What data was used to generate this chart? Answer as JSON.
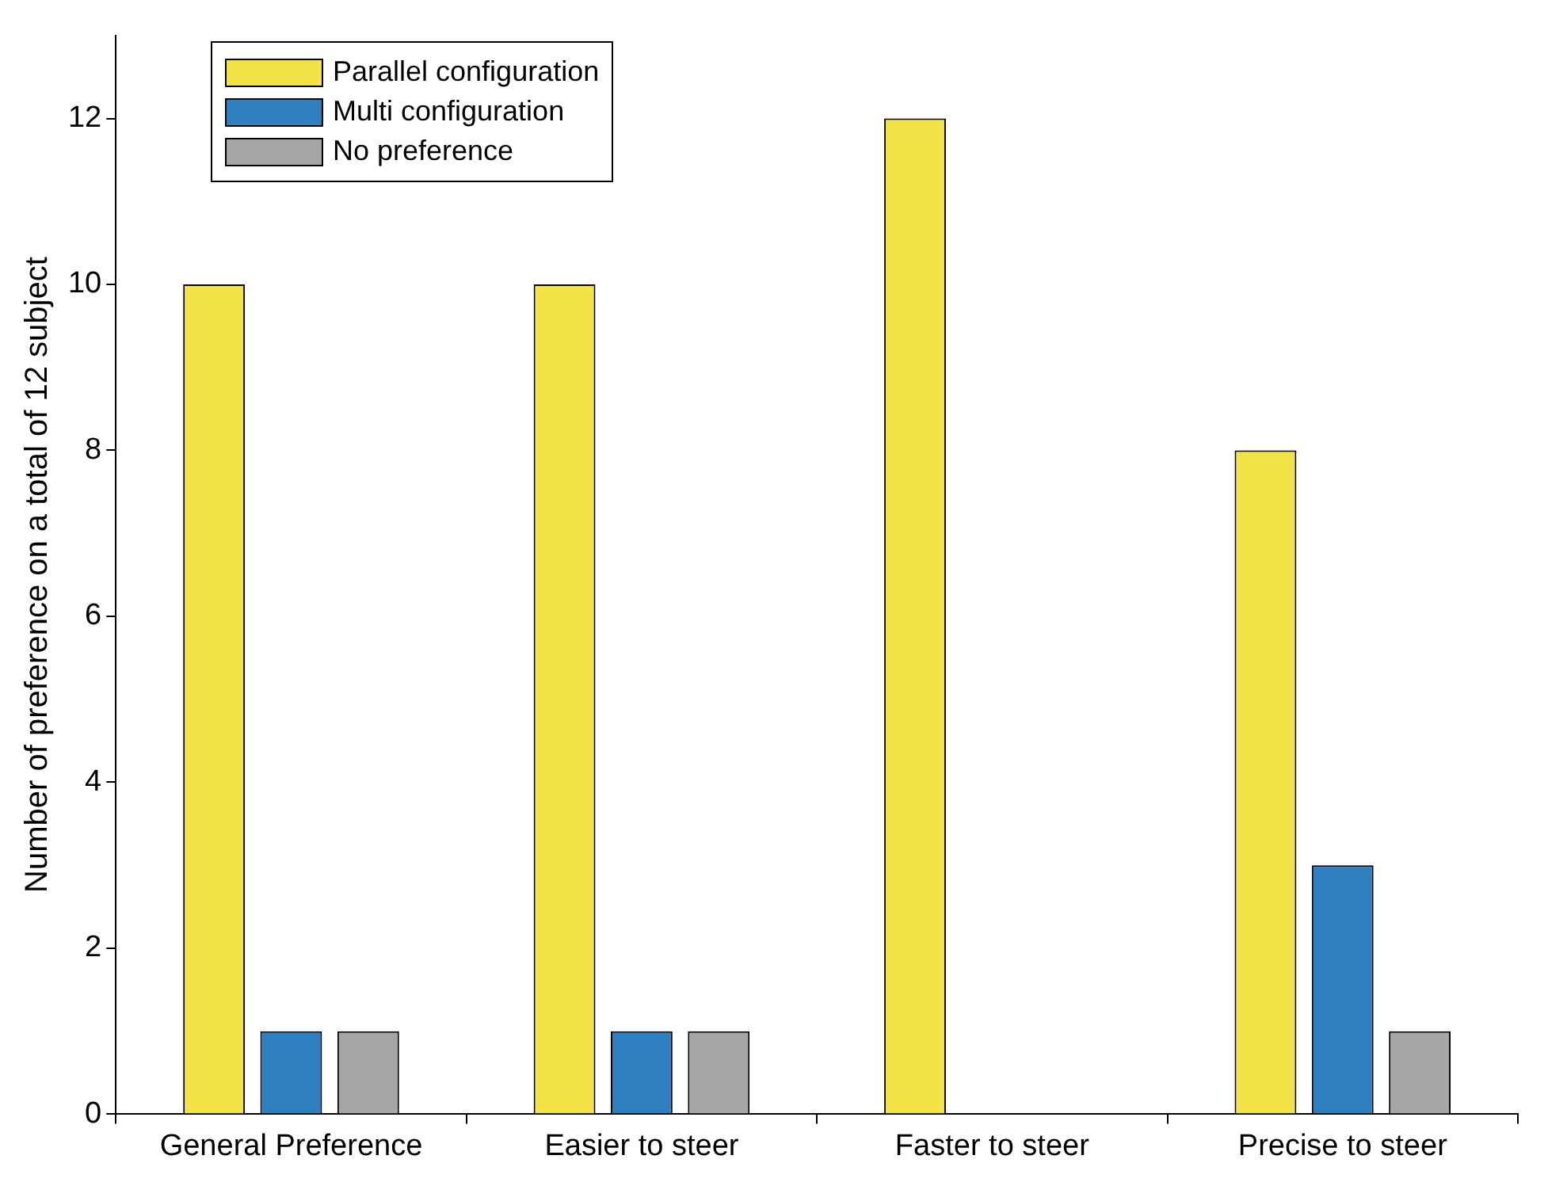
{
  "chart_data": {
    "type": "bar",
    "ylabel": "Number of preference on a total of 12 subject",
    "categories": [
      "General Preference",
      "Easier to steer",
      "Faster to steer",
      "Precise to steer"
    ],
    "series": [
      {
        "name": "Parallel configuration",
        "color": "#f3e346",
        "values": [
          10,
          10,
          12,
          8
        ]
      },
      {
        "name": "Multi configuration",
        "color": "#2e7fc0",
        "values": [
          1,
          1,
          0,
          3
        ]
      },
      {
        "name": "No preference",
        "color": "#a6a6a6",
        "values": [
          1,
          1,
          0,
          1
        ]
      }
    ],
    "ylim": [
      0,
      13
    ],
    "yticks": [
      0,
      2,
      4,
      6,
      8,
      10,
      12
    ],
    "grid": false,
    "legend": "top left"
  }
}
